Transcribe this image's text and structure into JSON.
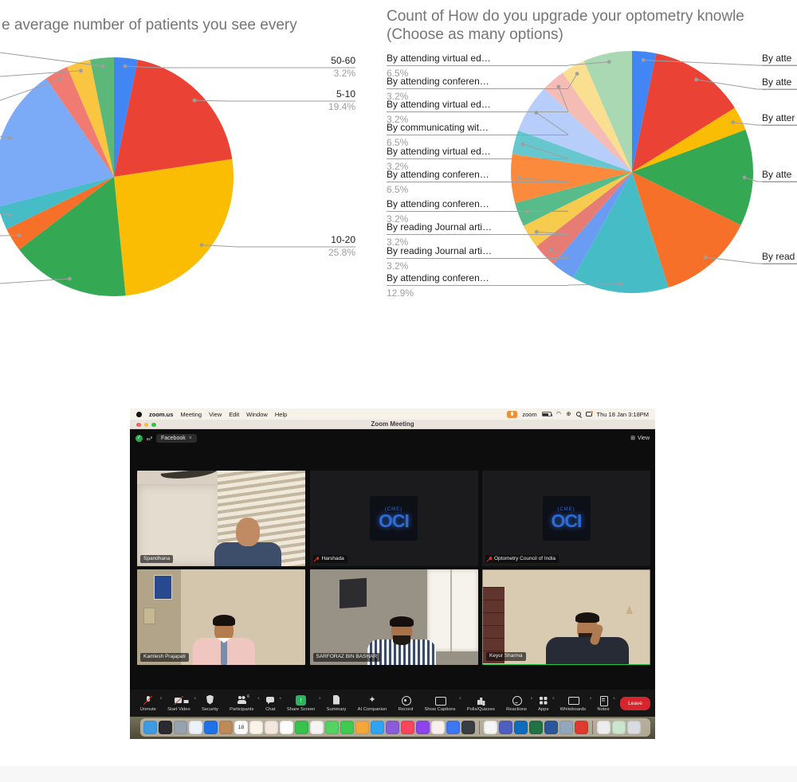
{
  "chart_data": [
    {
      "type": "pie",
      "title": "e average number of patients you see every",
      "legend_position": "labeled",
      "slices": [
        {
          "label": "50-60",
          "value": 3.2,
          "pct_label": "3.2%",
          "color": "#4285F4"
        },
        {
          "label": "5-10",
          "value": 19.4,
          "pct_label": "19.4%",
          "color": "#EA4335"
        },
        {
          "label": "10-20",
          "value": 25.8,
          "pct_label": "25.8%",
          "color": "#FBBC04"
        },
        {
          "label": "",
          "value": 16.1,
          "pct_label": "",
          "color": "#34A853"
        },
        {
          "label": "",
          "value": 3.2,
          "pct_label": "",
          "color": "#F6702A"
        },
        {
          "label": "",
          "value": 3.2,
          "pct_label": "",
          "color": "#46BDC6"
        },
        {
          "label": "",
          "value": 19.4,
          "pct_label": "",
          "color": "#7BAAF7"
        },
        {
          "label": "",
          "value": 3.2,
          "pct_label": "",
          "color": "#F07B72"
        },
        {
          "label": "",
          "value": 3.2,
          "pct_label": "",
          "color": "#FAC642"
        },
        {
          "label": "",
          "value": 3.2,
          "pct_label": "",
          "color": "#5BB878"
        }
      ]
    },
    {
      "type": "pie",
      "title": "Count of How do you upgrade your optometry knowle",
      "subtitle": "(Choose as many options)",
      "legend_position": "labeled",
      "slices": [
        {
          "label": "By atte",
          "value": 3.2,
          "pct_label": "",
          "color": "#4285F4"
        },
        {
          "label": "By atte",
          "value": 12.9,
          "pct_label": "",
          "color": "#EA4335"
        },
        {
          "label": "By atter",
          "value": 3.2,
          "pct_label": "",
          "color": "#FBBC04"
        },
        {
          "label": "By atte",
          "value": 12.9,
          "pct_label": "",
          "color": "#34A853"
        },
        {
          "label": "By read",
          "value": 12.9,
          "pct_label": "",
          "color": "#F6702A"
        },
        {
          "label": "By attending conferen…",
          "value": 12.9,
          "pct_label": "12.9%",
          "color": "#46BDC6"
        },
        {
          "label": "",
          "value": 3.2,
          "pct_label": "",
          "color": "#6B9CF4"
        },
        {
          "label": "By reading Journal arti…",
          "value": 3.2,
          "pct_label": "3.2%",
          "color": "#E67C73"
        },
        {
          "label": "By reading Journal arti…",
          "value": 3.2,
          "pct_label": "3.2%",
          "color": "#F7CB4D"
        },
        {
          "label": "By attending conferen…",
          "value": 3.2,
          "pct_label": "3.2%",
          "color": "#57BB8A"
        },
        {
          "label": "By attending conferen…",
          "value": 6.5,
          "pct_label": "6.5%",
          "color": "#FB8A3C"
        },
        {
          "label": "By attending virtual ed…",
          "value": 3.2,
          "pct_label": "3.2%",
          "color": "#66C8CE"
        },
        {
          "label": "By communicating wit…",
          "value": 6.5,
          "pct_label": "6.5%",
          "color": "#B6CEF9"
        },
        {
          "label": "By attending virtual ed…",
          "value": 3.2,
          "pct_label": "3.2%",
          "color": "#F4BCB5"
        },
        {
          "label": "By attending conferen…",
          "value": 3.2,
          "pct_label": "3.2%",
          "color": "#FBDF90"
        },
        {
          "label": "By attending virtual ed…",
          "value": 6.5,
          "pct_label": "6.5%",
          "color": "#A9D8B2"
        }
      ]
    }
  ],
  "zoom": {
    "menu_bar": {
      "items": [
        "zoom.us",
        "Meeting",
        "View",
        "Edit",
        "Window",
        "Help"
      ],
      "app_indicator": "zoom",
      "time": "Thu 18 Jan 3:18PM"
    },
    "window_title": "Zoom Meeting",
    "header": {
      "channel": "Facebook",
      "view": "View"
    },
    "participants": [
      {
        "name": "Spandhana",
        "muted": false
      },
      {
        "name": "Harshada",
        "muted": true,
        "logo_sub": "(CME)",
        "logo_text": "OCI"
      },
      {
        "name": "Optometry Council of India",
        "muted": true,
        "logo_sub": "(CME)",
        "logo_text": "OCI"
      },
      {
        "name": "Kamlesh Prajapati",
        "muted": false
      },
      {
        "name": "SARFORAZ BIN BASHAR",
        "muted": false
      },
      {
        "name": "Keyur Sharma",
        "muted": false,
        "active_speaker": true
      }
    ],
    "toolbar": [
      {
        "label": "Unmute",
        "icon": "mic",
        "caret": true
      },
      {
        "label": "Start Video",
        "icon": "cam",
        "caret": true
      },
      {
        "label": "Security",
        "icon": "shield"
      },
      {
        "label": "Participants",
        "icon": "people",
        "badge": "6",
        "caret": true
      },
      {
        "label": "Chat",
        "icon": "chat",
        "caret": true
      },
      {
        "label": "Share Screen",
        "icon": "share",
        "caret": true
      },
      {
        "label": "Summary",
        "icon": "doc"
      },
      {
        "label": "AI Companion",
        "icon": "spark"
      },
      {
        "label": "Record",
        "icon": "rec"
      },
      {
        "label": "Show Captions",
        "icon": "cc",
        "caret": true
      },
      {
        "label": "Polls/Quizzes",
        "icon": "polls"
      },
      {
        "label": "Reactions",
        "icon": "smile",
        "caret": true
      },
      {
        "label": "Apps",
        "icon": "apps",
        "caret": true
      },
      {
        "label": "Whiteboards",
        "icon": "board",
        "caret": true
      },
      {
        "label": "Notes",
        "icon": "note",
        "caret": true
      },
      {
        "label": "Leave",
        "icon": "leave",
        "type": "leave"
      }
    ],
    "dock": [
      {
        "name": "finder",
        "color": "#3f9ae4"
      },
      {
        "name": "siri",
        "color": "#2a2a30"
      },
      {
        "name": "launchpad",
        "color": "#97a2ae"
      },
      {
        "name": "safari",
        "color": "#eaf2fa"
      },
      {
        "name": "mail",
        "color": "#1e73e8"
      },
      {
        "name": "contacts",
        "color": "#be8a58"
      },
      {
        "name": "calendar",
        "color": "#ffffff",
        "label": "18"
      },
      {
        "name": "notes-app",
        "color": "#f8f4e8"
      },
      {
        "name": "stocks",
        "color": "#f3e7e0"
      },
      {
        "name": "reminders",
        "color": "#fdfdfd"
      },
      {
        "name": "facetime",
        "color": "#37c24f"
      },
      {
        "name": "photos",
        "color": "#f4f4f4"
      },
      {
        "name": "messages",
        "color": "#54d262"
      },
      {
        "name": "camera-app",
        "color": "#3fcb50"
      },
      {
        "name": "pencil-app",
        "color": "#f3a73b"
      },
      {
        "name": "numbers",
        "color": "#30a4f2"
      },
      {
        "name": "keynote",
        "color": "#8a5cd8"
      },
      {
        "name": "music",
        "color": "#f9455f"
      },
      {
        "name": "podcasts",
        "color": "#8e44ec"
      },
      {
        "name": "snowflake-app",
        "color": "#f7f0ec"
      },
      {
        "name": "app-store",
        "color": "#3e77f0"
      },
      {
        "name": "settings",
        "color": "#3a3d42"
      },
      {
        "name": "divider"
      },
      {
        "name": "chrome",
        "color": "#f5f5f5"
      },
      {
        "name": "teams",
        "color": "#4e5fbf"
      },
      {
        "name": "outlook",
        "color": "#0f6cbd"
      },
      {
        "name": "excel",
        "color": "#217346"
      },
      {
        "name": "word",
        "color": "#2b579a"
      },
      {
        "name": "remote-desktop",
        "color": "#93a7bc"
      },
      {
        "name": "acrobat",
        "color": "#de3b2e"
      },
      {
        "name": "divider"
      },
      {
        "name": "files",
        "color": "#ededed"
      },
      {
        "name": "calculator",
        "color": "#cbe6ce"
      },
      {
        "name": "trash",
        "color": "#d9dde2"
      }
    ]
  }
}
